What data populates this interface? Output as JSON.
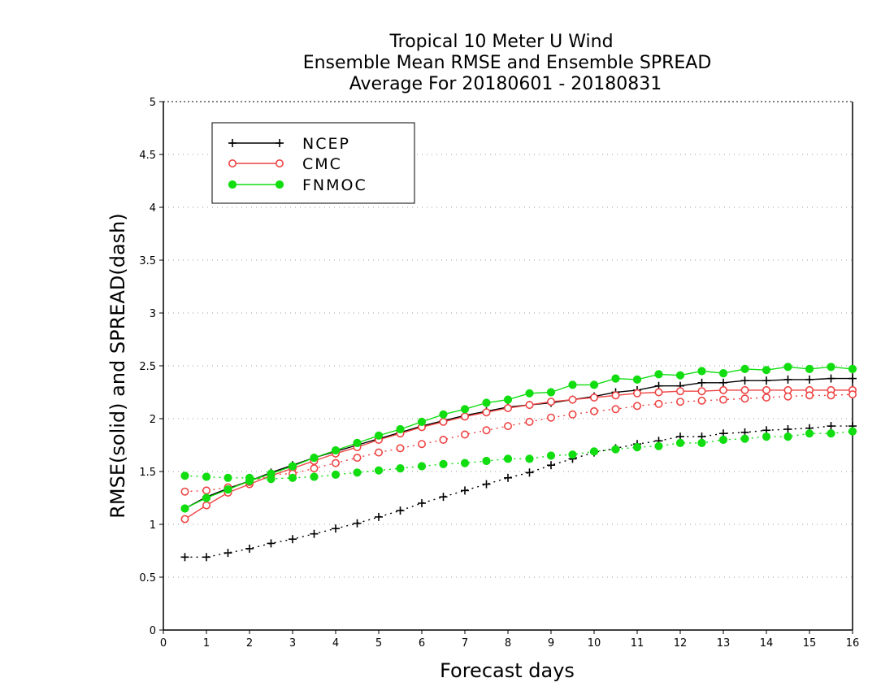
{
  "chart_data": {
    "type": "line",
    "title_lines": [
      "Tropical 10 Meter U Wind",
      "Ensemble Mean RMSE and Ensemble SPREAD",
      "Average For 20180601 - 20180831"
    ],
    "xlabel": "Forecast days",
    "ylabel": "RMSE(solid) and SPREAD(dash)",
    "xlim": [
      0,
      16
    ],
    "ylim": [
      0,
      5
    ],
    "x_ticks": [
      "0",
      "1",
      "2",
      "3",
      "4",
      "5",
      "6",
      "7",
      "8",
      "9",
      "10",
      "11",
      "12",
      "13",
      "14",
      "15",
      "16"
    ],
    "y_ticks": [
      "0",
      "0.5",
      "1",
      "1.5",
      "2",
      "2.5",
      "3",
      "3.5",
      "4",
      "4.5",
      "5"
    ],
    "grid": "horizontal dotted",
    "legend_position": "top-left",
    "x": [
      0.5,
      1,
      1.5,
      2,
      2.5,
      3,
      3.5,
      4,
      4.5,
      5,
      5.5,
      6,
      6.5,
      7,
      7.5,
      8,
      8.5,
      9,
      9.5,
      10,
      10.5,
      11,
      11.5,
      12,
      12.5,
      13,
      13.5,
      14,
      14.5,
      15,
      15.5,
      16
    ],
    "series": [
      {
        "name": "NCEP",
        "color": "#000000",
        "marker": "plus",
        "rmse": [
          1.15,
          1.26,
          1.34,
          1.41,
          1.49,
          1.56,
          1.63,
          1.69,
          1.75,
          1.81,
          1.87,
          1.93,
          1.98,
          2.03,
          2.07,
          2.11,
          2.13,
          2.15,
          2.18,
          2.21,
          2.25,
          2.27,
          2.31,
          2.31,
          2.34,
          2.34,
          2.36,
          2.36,
          2.37,
          2.37,
          2.38,
          2.38
        ],
        "spread": [
          0.69,
          0.69,
          0.73,
          0.77,
          0.82,
          0.86,
          0.91,
          0.96,
          1.01,
          1.07,
          1.13,
          1.2,
          1.26,
          1.32,
          1.38,
          1.44,
          1.49,
          1.56,
          1.62,
          1.68,
          1.72,
          1.76,
          1.79,
          1.83,
          1.83,
          1.86,
          1.87,
          1.89,
          1.9,
          1.91,
          1.93,
          1.93
        ]
      },
      {
        "name": "CMC",
        "color": "#ee4444",
        "marker": "open-circle",
        "rmse": [
          1.05,
          1.18,
          1.3,
          1.38,
          1.46,
          1.53,
          1.6,
          1.67,
          1.73,
          1.8,
          1.86,
          1.92,
          1.97,
          2.02,
          2.06,
          2.1,
          2.13,
          2.16,
          2.18,
          2.2,
          2.22,
          2.24,
          2.25,
          2.26,
          2.26,
          2.27,
          2.27,
          2.27,
          2.27,
          2.27,
          2.27,
          2.27
        ],
        "spread": [
          1.31,
          1.32,
          1.35,
          1.4,
          1.47,
          1.48,
          1.53,
          1.58,
          1.63,
          1.68,
          1.72,
          1.76,
          1.8,
          1.85,
          1.89,
          1.93,
          1.97,
          2.01,
          2.04,
          2.07,
          2.09,
          2.12,
          2.14,
          2.16,
          2.17,
          2.18,
          2.19,
          2.2,
          2.21,
          2.22,
          2.22,
          2.23
        ]
      },
      {
        "name": "FNMOC",
        "color": "#11dd11",
        "marker": "filled-circle",
        "rmse": [
          1.15,
          1.25,
          1.33,
          1.41,
          1.48,
          1.55,
          1.63,
          1.7,
          1.77,
          1.84,
          1.9,
          1.97,
          2.04,
          2.09,
          2.15,
          2.18,
          2.24,
          2.25,
          2.32,
          2.32,
          2.38,
          2.37,
          2.42,
          2.41,
          2.45,
          2.43,
          2.47,
          2.46,
          2.49,
          2.47,
          2.49,
          2.47
        ],
        "spread": [
          1.46,
          1.45,
          1.44,
          1.44,
          1.43,
          1.44,
          1.45,
          1.47,
          1.49,
          1.51,
          1.53,
          1.55,
          1.57,
          1.58,
          1.6,
          1.62,
          1.62,
          1.65,
          1.66,
          1.69,
          1.71,
          1.73,
          1.74,
          1.77,
          1.77,
          1.8,
          1.81,
          1.83,
          1.83,
          1.86,
          1.86,
          1.88
        ]
      }
    ]
  }
}
